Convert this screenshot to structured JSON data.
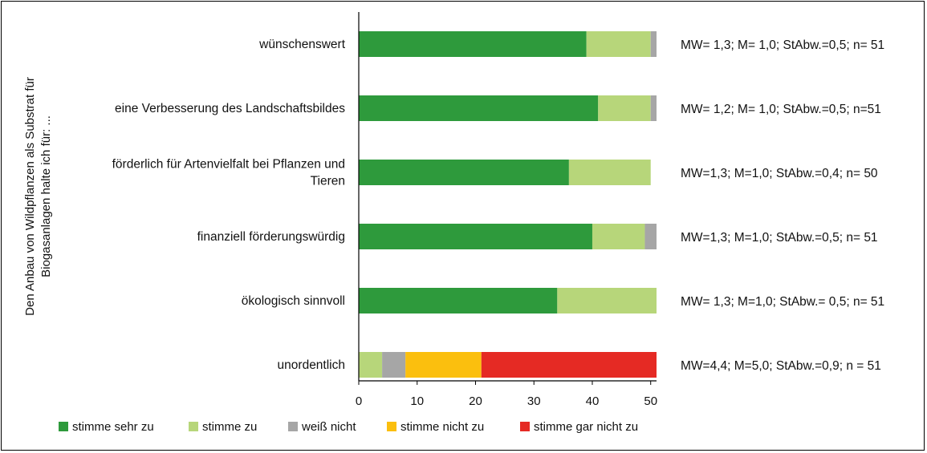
{
  "chart_data": {
    "type": "bar",
    "orientation": "horizontal",
    "stacked": true,
    "ylabel_lines": [
      "Den Anbau von Wildpflanzen als Substrat für",
      "Biogasanlagen halte ich für: ..."
    ],
    "categories": [
      [
        "wünschenswert"
      ],
      [
        "eine Verbesserung des Landschaftsbildes"
      ],
      [
        "förderlich für Artenvielfalt bei Pflanzen und",
        "Tieren"
      ],
      [
        "finanziell  förderungswürdig"
      ],
      [
        "ökologisch sinnvoll"
      ],
      [
        "unordentlich"
      ]
    ],
    "stats": [
      "MW= 1,3; M= 1,0; StAbw.=0,5; n= 51",
      "MW= 1,2; M= 1,0; StAbw.=0,5; n=51",
      "MW=1,3; M=1,0;  StAbw.=0,4; n= 50",
      "MW=1,3; M=1,0; StAbw.=0,5; n= 51",
      "MW= 1,3; M=1,0; StAbw.= 0,5; n= 51",
      "MW=4,4; M=5,0; StAbw.=0,9; n = 51"
    ],
    "series": [
      {
        "name": "stimme sehr zu",
        "color": "#2e9a3c",
        "values": [
          39,
          41,
          36,
          40,
          34,
          0
        ]
      },
      {
        "name": "stimme zu",
        "color": "#b7d67a",
        "values": [
          11,
          9,
          14,
          9,
          17,
          4
        ]
      },
      {
        "name": "weiß nicht",
        "color": "#a6a6a6",
        "values": [
          1,
          1,
          0,
          2,
          0,
          4
        ]
      },
      {
        "name": "stimme nicht zu",
        "color": "#fbbf0e",
        "values": [
          0,
          0,
          0,
          0,
          0,
          13
        ]
      },
      {
        "name": "stimme gar nicht zu",
        "color": "#e52a24",
        "values": [
          0,
          0,
          0,
          0,
          0,
          30
        ]
      }
    ],
    "xlim": [
      0,
      51
    ],
    "xticks": [
      0,
      10,
      20,
      30,
      40,
      50
    ],
    "grid": false,
    "legend_position": "bottom"
  }
}
